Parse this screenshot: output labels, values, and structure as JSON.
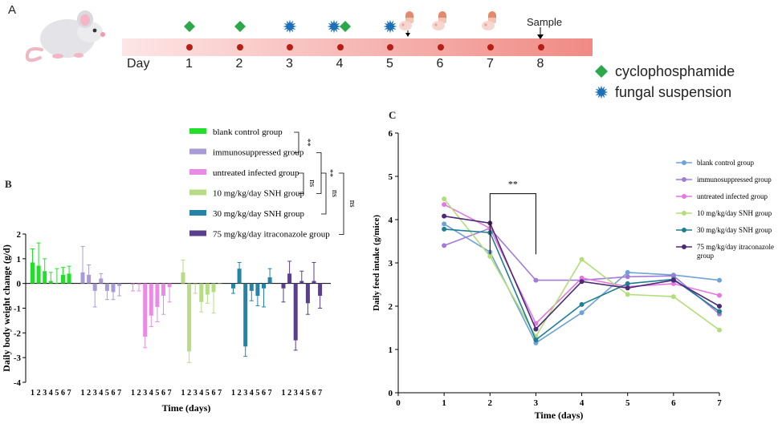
{
  "panel_labels": {
    "a": "A",
    "b": "B",
    "c": "C"
  },
  "timeline": {
    "day_word": "Day",
    "days": [
      "1",
      "2",
      "3",
      "4",
      "5",
      "6",
      "7",
      "8"
    ],
    "sample_label": "Sample",
    "legend": [
      {
        "label": "cyclophosphamide",
        "icon": "green-diamond-icon",
        "color": "#2aa84a"
      },
      {
        "label": "fungal suspension",
        "icon": "blue-starburst-icon",
        "color": "#1d6fb8"
      }
    ],
    "markers": [
      {
        "day": 1,
        "icons": [
          "diamond"
        ]
      },
      {
        "day": 2,
        "icons": [
          "diamond"
        ]
      },
      {
        "day": 3,
        "icons": [
          "star"
        ]
      },
      {
        "day": 4,
        "icons": [
          "star",
          "diamond"
        ]
      },
      {
        "day": 5,
        "icons": [
          "star"
        ]
      }
    ],
    "drug_days": [
      5.35,
      6,
      7
    ]
  },
  "chart_data": [
    {
      "id": "B",
      "type": "bar",
      "title": "",
      "xlabel": "Time (days)",
      "ylabel": "Daily body weight change (g/d)",
      "ylim": [
        -4,
        2
      ],
      "yticks": [
        -4,
        -3,
        -2,
        -1,
        0,
        1,
        2
      ],
      "categories": [
        "1",
        "2",
        "3",
        "4",
        "5",
        "6",
        "7"
      ],
      "series": [
        {
          "name": "blank control group",
          "color": "#22e02a",
          "values": [
            0.85,
            0.72,
            0.5,
            0.1,
            0.0,
            0.35,
            0.4
          ],
          "err": [
            0.55,
            0.92,
            0.5,
            0.35,
            0.6,
            0.3,
            0.3
          ]
        },
        {
          "name": "immunosuppressed group",
          "color": "#a99cd6",
          "values": [
            0.45,
            0.35,
            -0.3,
            0.2,
            -0.3,
            -0.35,
            -0.1
          ],
          "err": [
            1.05,
            0.4,
            0.65,
            0.2,
            0.35,
            0.3,
            0.4
          ]
        },
        {
          "name": "untreated infected  group",
          "color": "#ea8ae6",
          "values": [
            -0.05,
            -0.05,
            -2.15,
            -1.3,
            -0.95,
            -0.5,
            -0.15
          ],
          "err": [
            0.25,
            0.25,
            0.45,
            0.45,
            0.6,
            0.75,
            0.6
          ]
        },
        {
          "name": "10 mg/kg/day SNH group",
          "color": "#b6dc86",
          "values": [
            0.45,
            -2.75,
            -0.05,
            -0.75,
            -0.45,
            -0.35,
            0.0
          ],
          "err": [
            0.5,
            0.45,
            0.35,
            0.4,
            0.35,
            0.85,
            0.0
          ]
        },
        {
          "name": "30 mg/kg/day SNH group",
          "color": "#2683a8",
          "values": [
            -0.2,
            0.6,
            -2.55,
            -0.3,
            -0.5,
            -0.2,
            0.25
          ],
          "err": [
            0.2,
            0.25,
            0.4,
            0.4,
            0.4,
            0.75,
            0.35
          ]
        },
        {
          "name": "75 mg/kg/day itraconazole group",
          "color": "#5a3f8c",
          "values": [
            -0.2,
            0.4,
            -2.3,
            0.1,
            -0.8,
            0.1,
            -0.5
          ],
          "err": [
            0.55,
            0.5,
            0.4,
            0.4,
            0.45,
            0.75,
            0.5
          ]
        }
      ],
      "significance": [
        {
          "label": "**",
          "between": [
            "blank control group",
            "immunosuppressed group"
          ]
        },
        {
          "label": "**",
          "between": [
            "immunosuppressed group",
            "10 mg/kg/day SNH group"
          ]
        },
        {
          "label": "ns",
          "between": [
            "untreated infected  group",
            "10 mg/kg/day SNH group"
          ]
        },
        {
          "label": "ns",
          "between": [
            "untreated infected  group",
            "30 mg/kg/day SNH group"
          ]
        },
        {
          "label": "ns",
          "between": [
            "untreated infected  group",
            "75 mg/kg/day itraconazole group"
          ]
        }
      ]
    },
    {
      "id": "C",
      "type": "line",
      "title": "",
      "xlabel": "Time (days)",
      "ylabel": "Daily feed intake (g/mice)",
      "xlim": [
        0,
        7
      ],
      "ylim": [
        0,
        6
      ],
      "xticks": [
        0,
        1,
        2,
        3,
        4,
        5,
        6,
        7
      ],
      "yticks": [
        0,
        1,
        2,
        3,
        4,
        5,
        6
      ],
      "x": [
        1,
        2,
        3,
        4,
        5,
        6,
        7
      ],
      "series": [
        {
          "name": "blank control group",
          "color": "#6fa3d8",
          "values": [
            3.9,
            3.25,
            1.15,
            1.85,
            2.78,
            2.72,
            2.6
          ]
        },
        {
          "name": "immunosuppressed group",
          "color": "#a27ad9",
          "values": [
            3.4,
            3.8,
            2.6,
            2.6,
            2.68,
            2.7,
            1.82
          ]
        },
        {
          "name": "untreated infected  group",
          "color": "#e676e0",
          "values": [
            4.35,
            3.8,
            1.6,
            2.65,
            2.45,
            2.52,
            2.25
          ]
        },
        {
          "name": "10 mg/kg/day SNH group",
          "color": "#b3dd78",
          "values": [
            4.48,
            3.15,
            1.3,
            3.08,
            2.27,
            2.22,
            1.45
          ]
        },
        {
          "name": "30 mg/kg/day SNH group",
          "color": "#1f7e93",
          "values": [
            3.78,
            3.7,
            1.22,
            2.04,
            2.52,
            2.62,
            1.88
          ]
        },
        {
          "name": "75 mg/kg/day itraconazole group",
          "color": "#4b2a78",
          "values": [
            4.08,
            3.92,
            1.47,
            2.57,
            2.42,
            2.6,
            2.0
          ]
        }
      ],
      "annotation": {
        "label": "**",
        "x_from": 2,
        "x_to": 3
      }
    }
  ]
}
